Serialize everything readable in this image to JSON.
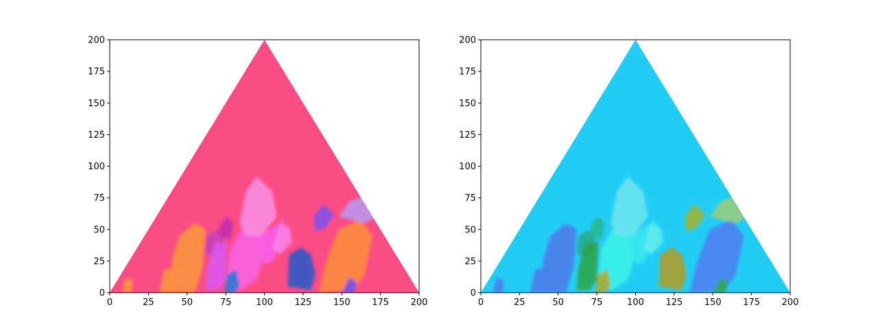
{
  "chart_data": [
    {
      "type": "ternary-image",
      "title": "",
      "xlabel": "",
      "ylabel": "",
      "xlim": [
        0,
        200
      ],
      "ylim": [
        0,
        200
      ],
      "xticks": [
        0,
        25,
        50,
        75,
        100,
        125,
        150,
        175,
        200
      ],
      "yticks": [
        0,
        25,
        50,
        75,
        100,
        125,
        150,
        175,
        200
      ],
      "xtick_labels": [
        "0",
        "25",
        "50",
        "75",
        "100",
        "125",
        "150",
        "175",
        "200"
      ],
      "ytick_labels": [
        "0",
        "25",
        "50",
        "75",
        "100",
        "125",
        "150",
        "175",
        "200"
      ],
      "triangle": [
        [
          0,
          0
        ],
        [
          100,
          200
        ],
        [
          200,
          0
        ]
      ],
      "background_color": "#fb4c85",
      "grains": [
        {
          "points": [
            [
              42,
              0
            ],
            [
              40,
              25
            ],
            [
              45,
              45
            ],
            [
              55,
              55
            ],
            [
              62,
              50
            ],
            [
              60,
              20
            ],
            [
              55,
              0
            ]
          ],
          "color": "#fc9a3a"
        },
        {
          "points": [
            [
              62,
              30
            ],
            [
              63,
              45
            ],
            [
              70,
              50
            ],
            [
              75,
              40
            ],
            [
              70,
              28
            ]
          ],
          "color": "#c23fb8"
        },
        {
          "points": [
            [
              72,
              55
            ],
            [
              70,
              45
            ],
            [
              78,
              42
            ],
            [
              80,
              55
            ],
            [
              76,
              60
            ]
          ],
          "color": "#c02ab0"
        },
        {
          "points": [
            [
              62,
              2
            ],
            [
              63,
              20
            ],
            [
              68,
              40
            ],
            [
              76,
              40
            ],
            [
              75,
              10
            ],
            [
              70,
              2
            ]
          ],
          "color": "#d957f1"
        },
        {
          "points": [
            [
              75,
              5
            ],
            [
              78,
              35
            ],
            [
              85,
              50
            ],
            [
              97,
              48
            ],
            [
              100,
              30
            ],
            [
              95,
              10
            ],
            [
              85,
              2
            ]
          ],
          "color": "#fa63e6"
        },
        {
          "points": [
            [
              84,
              55
            ],
            [
              88,
              80
            ],
            [
              95,
              92
            ],
            [
              105,
              80
            ],
            [
              108,
              60
            ],
            [
              98,
              45
            ],
            [
              88,
              45
            ]
          ],
          "color": "#fa90e6"
        },
        {
          "points": [
            [
              96,
              42
            ],
            [
              100,
              48
            ],
            [
              110,
              55
            ],
            [
              113,
              60
            ],
            [
              106,
              25
            ],
            [
              100,
              22
            ]
          ],
          "color": "#fb5ef0"
        },
        {
          "points": [
            [
              105,
              35
            ],
            [
              110,
              55
            ],
            [
              116,
              52
            ],
            [
              118,
              40
            ],
            [
              110,
              30
            ]
          ],
          "color": "#fa84ee"
        },
        {
          "points": [
            [
              115,
              5
            ],
            [
              116,
              30
            ],
            [
              124,
              36
            ],
            [
              130,
              30
            ],
            [
              133,
              15
            ],
            [
              130,
              2
            ]
          ],
          "color": "#1f5ac9"
        },
        {
          "points": [
            [
              135,
              0
            ],
            [
              140,
              25
            ],
            [
              148,
              50
            ],
            [
              162,
              58
            ],
            [
              170,
              45
            ],
            [
              165,
              15
            ],
            [
              158,
              2
            ]
          ],
          "color": "#fc8f3a"
        },
        {
          "points": [
            [
              133,
              48
            ],
            [
              140,
              52
            ],
            [
              145,
              62
            ],
            [
              138,
              70
            ],
            [
              132,
              60
            ]
          ],
          "color": "#7e52f2"
        },
        {
          "points": [
            [
              148,
              60
            ],
            [
              155,
              72
            ],
            [
              168,
              78
            ],
            [
              175,
              62
            ],
            [
              165,
              55
            ]
          ],
          "color": "#b89af2"
        },
        {
          "points": [
            [
              8,
              0
            ],
            [
              10,
              12
            ],
            [
              15,
              10
            ],
            [
              14,
              0
            ]
          ],
          "color": "#fc9a3a"
        },
        {
          "points": [
            [
              32,
              0
            ],
            [
              35,
              18
            ],
            [
              42,
              20
            ],
            [
              42,
              0
            ]
          ],
          "color": "#fc9a3a"
        },
        {
          "points": [
            [
              74,
              0
            ],
            [
              76,
              15
            ],
            [
              82,
              18
            ],
            [
              84,
              5
            ],
            [
              80,
              0
            ]
          ],
          "color": "#1d7cd8"
        },
        {
          "points": [
            [
              150,
              0
            ],
            [
              155,
              12
            ],
            [
              160,
              8
            ],
            [
              158,
              0
            ]
          ],
          "color": "#6a4df5"
        }
      ]
    },
    {
      "type": "ternary-image",
      "title": "",
      "xlabel": "",
      "ylabel": "",
      "xlim": [
        0,
        200
      ],
      "ylim": [
        0,
        200
      ],
      "xticks": [
        0,
        25,
        50,
        75,
        100,
        125,
        150,
        175,
        200
      ],
      "yticks": [
        0,
        25,
        50,
        75,
        100,
        125,
        150,
        175,
        200
      ],
      "xtick_labels": [
        "0",
        "25",
        "50",
        "75",
        "100",
        "125",
        "150",
        "175",
        "200"
      ],
      "ytick_labels": [
        "0",
        "25",
        "50",
        "75",
        "100",
        "125",
        "150",
        "175",
        "200"
      ],
      "triangle": [
        [
          0,
          0
        ],
        [
          100,
          200
        ],
        [
          200,
          0
        ]
      ],
      "background_color": "#22cdf5",
      "grains": [
        {
          "points": [
            [
              42,
              0
            ],
            [
              40,
              25
            ],
            [
              45,
              45
            ],
            [
              55,
              55
            ],
            [
              62,
              50
            ],
            [
              60,
              20
            ],
            [
              55,
              0
            ]
          ],
          "color": "#4f78ec"
        },
        {
          "points": [
            [
              62,
              30
            ],
            [
              63,
              45
            ],
            [
              70,
              50
            ],
            [
              75,
              40
            ],
            [
              70,
              28
            ]
          ],
          "color": "#2aa888"
        },
        {
          "points": [
            [
              72,
              55
            ],
            [
              70,
              45
            ],
            [
              78,
              42
            ],
            [
              80,
              55
            ],
            [
              76,
              60
            ]
          ],
          "color": "#27b78c"
        },
        {
          "points": [
            [
              62,
              2
            ],
            [
              63,
              20
            ],
            [
              68,
              40
            ],
            [
              76,
              40
            ],
            [
              75,
              10
            ],
            [
              70,
              2
            ]
          ],
          "color": "#2da33f"
        },
        {
          "points": [
            [
              75,
              5
            ],
            [
              78,
              35
            ],
            [
              85,
              50
            ],
            [
              97,
              48
            ],
            [
              100,
              30
            ],
            [
              95,
              10
            ],
            [
              85,
              2
            ]
          ],
          "color": "#3df2e6"
        },
        {
          "points": [
            [
              84,
              55
            ],
            [
              88,
              80
            ],
            [
              95,
              92
            ],
            [
              105,
              80
            ],
            [
              108,
              60
            ],
            [
              98,
              45
            ],
            [
              88,
              45
            ]
          ],
          "color": "#72e6ee"
        },
        {
          "points": [
            [
              96,
              42
            ],
            [
              100,
              48
            ],
            [
              110,
              55
            ],
            [
              113,
              60
            ],
            [
              106,
              25
            ],
            [
              100,
              22
            ]
          ],
          "color": "#39e9ee"
        },
        {
          "points": [
            [
              105,
              35
            ],
            [
              110,
              55
            ],
            [
              116,
              52
            ],
            [
              118,
              40
            ],
            [
              110,
              30
            ]
          ],
          "color": "#64edee"
        },
        {
          "points": [
            [
              115,
              5
            ],
            [
              116,
              30
            ],
            [
              124,
              36
            ],
            [
              130,
              30
            ],
            [
              133,
              15
            ],
            [
              130,
              2
            ]
          ],
          "color": "#b59a1c"
        },
        {
          "points": [
            [
              135,
              0
            ],
            [
              140,
              25
            ],
            [
              148,
              50
            ],
            [
              162,
              58
            ],
            [
              170,
              45
            ],
            [
              165,
              15
            ],
            [
              158,
              2
            ]
          ],
          "color": "#4f7cf0"
        },
        {
          "points": [
            [
              133,
              48
            ],
            [
              140,
              52
            ],
            [
              145,
              62
            ],
            [
              138,
              70
            ],
            [
              132,
              60
            ]
          ],
          "color": "#a9b22b"
        },
        {
          "points": [
            [
              148,
              60
            ],
            [
              155,
              72
            ],
            [
              168,
              78
            ],
            [
              175,
              62
            ],
            [
              165,
              55
            ]
          ],
          "color": "#9ecf7a"
        },
        {
          "points": [
            [
              8,
              0
            ],
            [
              10,
              12
            ],
            [
              15,
              10
            ],
            [
              14,
              0
            ]
          ],
          "color": "#4f78ec"
        },
        {
          "points": [
            [
              32,
              0
            ],
            [
              35,
              18
            ],
            [
              42,
              20
            ],
            [
              42,
              0
            ]
          ],
          "color": "#4f78ec"
        },
        {
          "points": [
            [
              74,
              0
            ],
            [
              76,
              15
            ],
            [
              82,
              18
            ],
            [
              84,
              5
            ],
            [
              80,
              0
            ]
          ],
          "color": "#b5a724"
        },
        {
          "points": [
            [
              150,
              0
            ],
            [
              155,
              12
            ],
            [
              160,
              8
            ],
            [
              158,
              0
            ]
          ],
          "color": "#2fa94a"
        }
      ]
    }
  ]
}
